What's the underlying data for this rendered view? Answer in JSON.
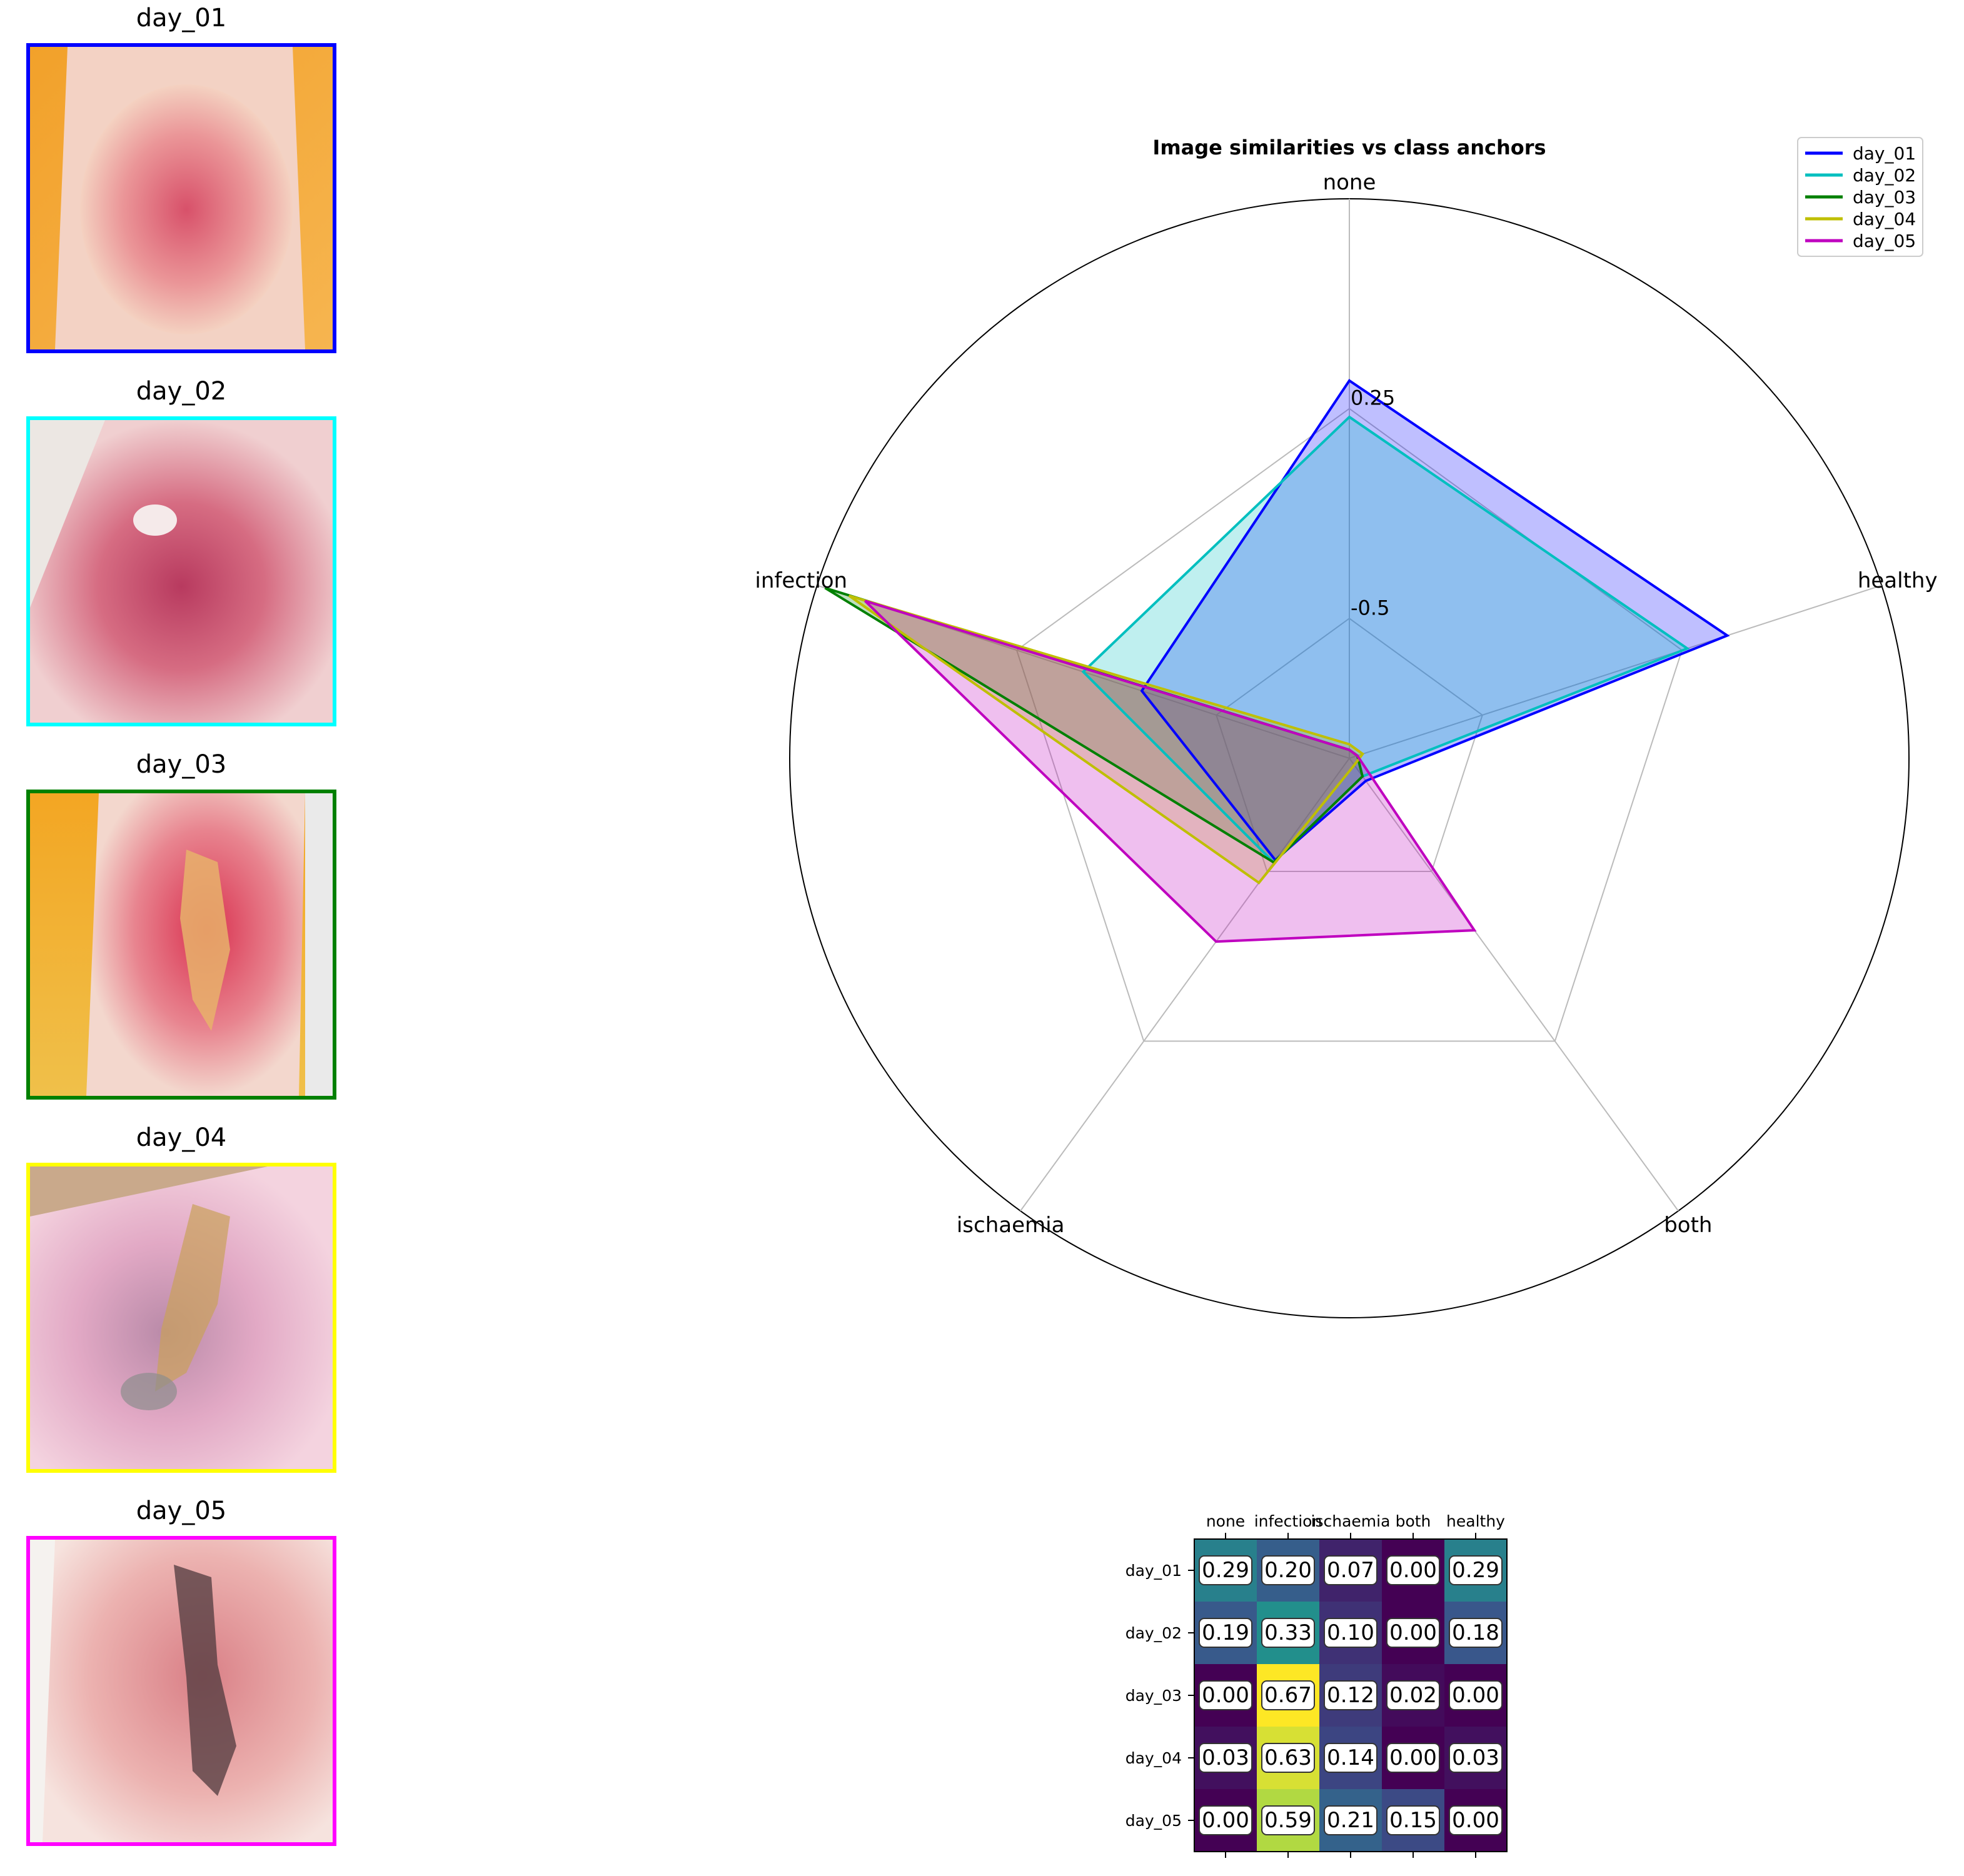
{
  "thumbnails": [
    {
      "label": "day_01",
      "color": "#0000ff"
    },
    {
      "label": "day_02",
      "color": "#00ffff"
    },
    {
      "label": "day_03",
      "color": "#008000"
    },
    {
      "label": "day_04",
      "color": "#ffff00"
    },
    {
      "label": "day_05",
      "color": "#ff00ff"
    }
  ],
  "chart_data": [
    {
      "type": "radar",
      "title": "Image similarities vs class anchors",
      "axes": [
        "none",
        "infection",
        "ischaemia",
        "both",
        "healthy"
      ],
      "rlim": [
        -1.0,
        1.0
      ],
      "rticks": [
        {
          "value": -0.5,
          "label": "-0.5"
        },
        {
          "value": 0.25,
          "label": "0.25"
        }
      ],
      "legend_position": "top-right",
      "series": [
        {
          "name": "day_01",
          "color": "#0000ff",
          "fill": "#0000ff",
          "values": [
            0.35,
            -0.22,
            -0.55,
            -0.9,
            0.42
          ]
        },
        {
          "name": "day_02",
          "color": "#00bfbf",
          "fill": "#00bfbf",
          "values": [
            0.22,
            0.0,
            -0.54,
            -0.92,
            0.27
          ]
        },
        {
          "name": "day_03",
          "color": "#008000",
          "fill": "#008000",
          "values": [
            -0.97,
            0.97,
            -0.54,
            -0.92,
            -0.97
          ]
        },
        {
          "name": "day_04",
          "color": "#bfbf00",
          "fill": "#bfbf00",
          "values": [
            -0.95,
            0.88,
            -0.45,
            -0.97,
            -0.95
          ]
        },
        {
          "name": "day_05",
          "color": "#bf00bf",
          "fill": "#bf00bf",
          "values": [
            -0.97,
            0.82,
            -0.19,
            -0.24,
            -0.97
          ]
        }
      ]
    },
    {
      "type": "heatmap",
      "rows": [
        "day_01",
        "day_02",
        "day_03",
        "day_04",
        "day_05"
      ],
      "columns": [
        "none",
        "infection",
        "ischaemia",
        "both",
        "healthy"
      ],
      "values": [
        [
          0.29,
          0.2,
          0.07,
          0.0,
          0.29
        ],
        [
          0.19,
          0.33,
          0.1,
          0.0,
          0.18
        ],
        [
          0.0,
          0.67,
          0.12,
          0.02,
          0.0
        ],
        [
          0.03,
          0.63,
          0.14,
          0.0,
          0.03
        ],
        [
          0.0,
          0.59,
          0.21,
          0.15,
          0.0
        ]
      ],
      "colormap": "viridis",
      "vmin": 0.0,
      "vmax": 0.67
    }
  ]
}
